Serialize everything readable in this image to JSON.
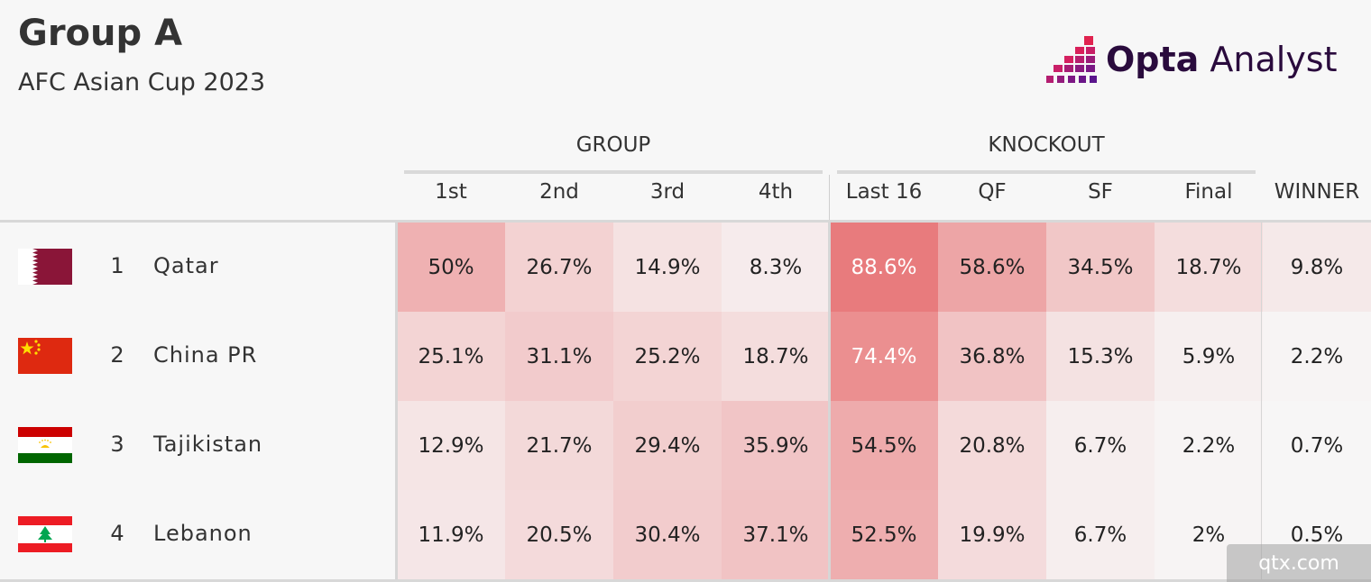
{
  "header": {
    "title": "Group A",
    "subtitle": "AFC Asian Cup 2023",
    "logo": {
      "bold": "Opta",
      "light": " Analyst"
    }
  },
  "watermark": "qtx.com",
  "chart_data": {
    "type": "table",
    "title": "Group A",
    "subtitle": "AFC Asian Cup 2023",
    "column_groups": [
      {
        "label": "GROUP",
        "columns": [
          "1st",
          "2nd",
          "3rd",
          "4th"
        ]
      },
      {
        "label": "KNOCKOUT",
        "columns": [
          "Last 16",
          "QF",
          "SF",
          "Final"
        ]
      },
      {
        "label": "",
        "columns": [
          "WINNER"
        ]
      }
    ],
    "columns": [
      "1st",
      "2nd",
      "3rd",
      "4th",
      "Last 16",
      "QF",
      "SF",
      "Final",
      "WINNER"
    ],
    "rows": [
      {
        "rank": "1",
        "team": "Qatar",
        "flag": "qatar-flag",
        "values": [
          50,
          26.7,
          14.9,
          8.3,
          88.6,
          58.6,
          34.5,
          18.7,
          9.8
        ],
        "labels": [
          "50%",
          "26.7%",
          "14.9%",
          "8.3%",
          "88.6%",
          "58.6%",
          "34.5%",
          "18.7%",
          "9.8%"
        ]
      },
      {
        "rank": "2",
        "team": "China PR",
        "flag": "china-flag",
        "values": [
          25.1,
          31.1,
          25.2,
          18.7,
          74.4,
          36.8,
          15.3,
          5.9,
          2.2
        ],
        "labels": [
          "25.1%",
          "31.1%",
          "25.2%",
          "18.7%",
          "74.4%",
          "36.8%",
          "15.3%",
          "5.9%",
          "2.2%"
        ]
      },
      {
        "rank": "3",
        "team": "Tajikistan",
        "flag": "tajikistan-flag",
        "values": [
          12.9,
          21.7,
          29.4,
          35.9,
          54.5,
          20.8,
          6.7,
          2.2,
          0.7
        ],
        "labels": [
          "12.9%",
          "21.7%",
          "29.4%",
          "35.9%",
          "54.5%",
          "20.8%",
          "6.7%",
          "2.2%",
          "0.7%"
        ]
      },
      {
        "rank": "4",
        "team": "Lebanon",
        "flag": "lebanon-flag",
        "values": [
          11.9,
          20.5,
          30.4,
          37.1,
          52.5,
          19.9,
          6.7,
          2,
          0.5
        ],
        "labels": [
          "11.9%",
          "20.5%",
          "30.4%",
          "37.1%",
          "52.5%",
          "19.9%",
          "6.7%",
          "2%",
          "0.5%"
        ]
      }
    ],
    "heat_color": "#e8797b",
    "base_color": "#f7f7f7"
  }
}
